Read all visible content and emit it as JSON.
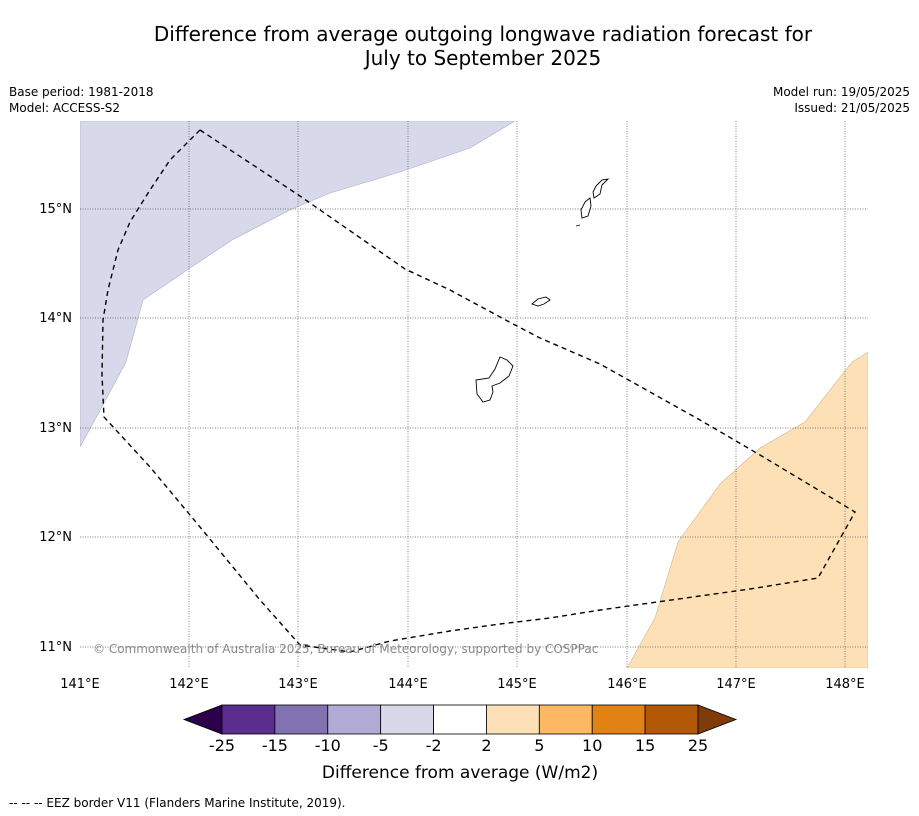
{
  "header": {
    "title_line1": "Difference from average outgoing longwave radiation forecast for",
    "title_line2": "July to September 2025",
    "base_period": "Base period: 1981-2018",
    "model": "Model: ACCESS-S2",
    "model_run": "Model run: 19/05/2025",
    "issued": "Issued: 21/05/2025"
  },
  "map": {
    "lon_ticks": [
      "141°E",
      "142°E",
      "143°E",
      "144°E",
      "145°E",
      "146°E",
      "147°E",
      "148°E"
    ],
    "lat_ticks": [
      "15°N",
      "14°N",
      "13°N",
      "12°N",
      "11°N"
    ],
    "copyright": "© Commonwealth of Australia 2025, Bureau of Meteorology, supported by COSPPac",
    "colors": {
      "negative_region": "#d7d8ea",
      "positive_region": "#fde0b6",
      "grid": "#555555",
      "eez_border": "#000000"
    }
  },
  "legend": {
    "title": "Difference from average (W/m2)",
    "ticks": [
      "-25",
      "-15",
      "-10",
      "-5",
      "-2",
      "2",
      "5",
      "10",
      "15",
      "25"
    ],
    "colors": [
      "#2d004b",
      "#5a2d8f",
      "#8272b2",
      "#b1aad4",
      "#d7d8ea",
      "#ffffff",
      "#fde0b6",
      "#fdb863",
      "#e08214",
      "#b35806",
      "#7f3b08"
    ]
  },
  "footnote": {
    "text": "--  --  -- EEZ border V11 (Flanders Marine Institute, 2019)."
  }
}
